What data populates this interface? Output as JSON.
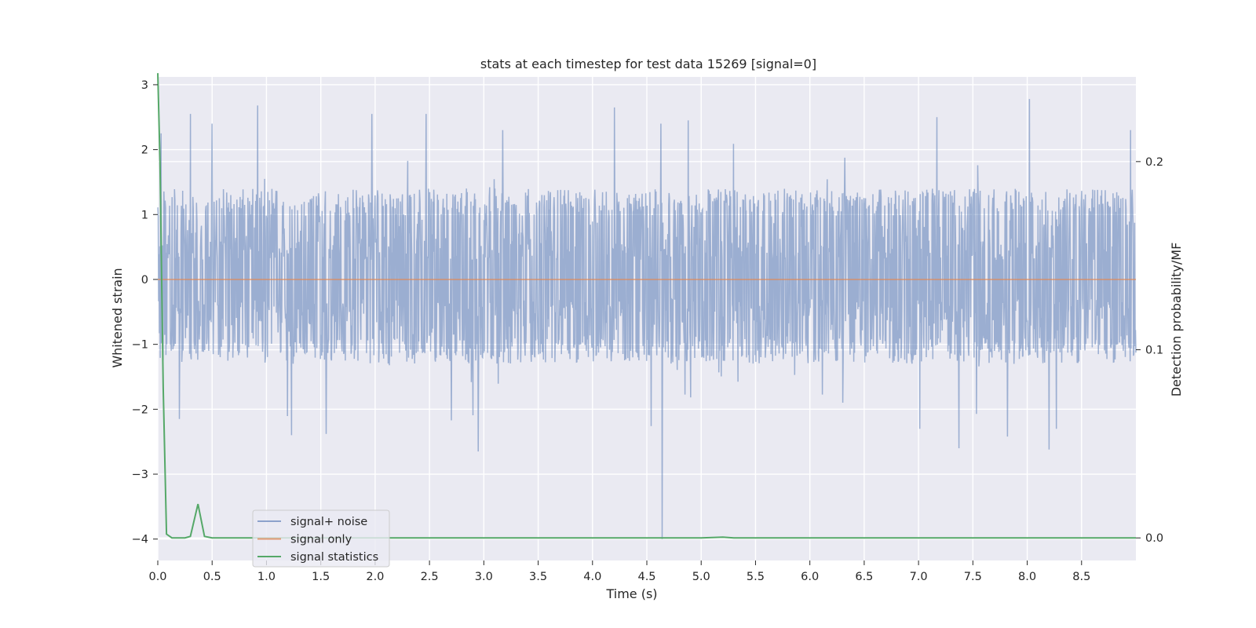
{
  "chart_data": {
    "type": "line",
    "title": "stats at each timestep for test data 15269 [signal=0]",
    "xlabel": "Time (s)",
    "ylabel": "Whitened strain",
    "y2label": "Detection probability/MF",
    "xlim": [
      0,
      9.0
    ],
    "ylim": [
      -4.33,
      3.12
    ],
    "y2lim": [
      -0.012,
      0.245
    ],
    "x_ticks": [
      0.0,
      0.5,
      1.0,
      1.5,
      2.0,
      2.5,
      3.0,
      3.5,
      4.0,
      4.5,
      5.0,
      5.5,
      6.0,
      6.5,
      7.0,
      7.5,
      8.0,
      8.5
    ],
    "x_tick_labels": [
      "0.0",
      "0.5",
      "1.0",
      "1.5",
      "2.0",
      "2.5",
      "3.0",
      "3.5",
      "4.0",
      "4.5",
      "5.0",
      "5.5",
      "6.0",
      "6.5",
      "7.0",
      "7.5",
      "8.0",
      "8.5"
    ],
    "y_ticks": [
      3,
      2,
      1,
      0,
      -1,
      -2,
      -3,
      -4
    ],
    "y_tick_labels": [
      "3",
      "2",
      "1",
      "0",
      "−1",
      "−2",
      "−3",
      "−4"
    ],
    "y2_ticks": [
      0.2,
      0.1,
      0.0
    ],
    "y2_tick_labels": [
      "0.2",
      "0.1",
      "0.0"
    ],
    "grid": true,
    "legend_position": "lower-left",
    "colors": {
      "background": "#eaeaf2",
      "grid": "#ffffff",
      "noise": "#4c72b0",
      "signal_only": "#dd8452",
      "statistics": "#55a868"
    },
    "series": [
      {
        "name": "signal+ noise",
        "axis": "left",
        "description_axis": "left",
        "typical_range": [
          -1.3,
          1.4
        ],
        "peaks": [
          {
            "x": 0.03,
            "y": 2.25
          },
          {
            "x": 0.3,
            "y": 2.55
          },
          {
            "x": 0.5,
            "y": 2.4
          },
          {
            "x": 0.92,
            "y": 2.68
          },
          {
            "x": 1.97,
            "y": 2.55
          },
          {
            "x": 2.47,
            "y": 2.55
          },
          {
            "x": 4.2,
            "y": 2.65
          },
          {
            "x": 4.63,
            "y": 2.4
          },
          {
            "x": 4.88,
            "y": 2.45
          },
          {
            "x": 7.17,
            "y": 2.5
          },
          {
            "x": 8.02,
            "y": 2.78
          },
          {
            "x": 8.95,
            "y": 2.3
          }
        ],
        "troughs": [
          {
            "x": 0.2,
            "y": -2.15
          },
          {
            "x": 1.23,
            "y": -2.4
          },
          {
            "x": 1.55,
            "y": -2.38
          },
          {
            "x": 2.95,
            "y": -2.65
          },
          {
            "x": 4.64,
            "y": -4.0
          },
          {
            "x": 7.37,
            "y": -2.6
          },
          {
            "x": 7.82,
            "y": -2.42
          },
          {
            "x": 8.2,
            "y": -2.62
          }
        ]
      },
      {
        "name": "signal only",
        "axis": "left",
        "x": [
          0.0,
          9.0
        ],
        "values": [
          0.0,
          0.0
        ]
      },
      {
        "name": "signal statistics",
        "axis": "right",
        "x": [
          0.0,
          0.02,
          0.05,
          0.08,
          0.13,
          0.18,
          0.25,
          0.3,
          0.37,
          0.43,
          0.5,
          0.6,
          1.0,
          2.0,
          3.0,
          4.0,
          5.0,
          5.2,
          5.3,
          6.0,
          7.0,
          8.0,
          9.0
        ],
        "values": [
          0.247,
          0.2,
          0.08,
          0.002,
          0.0,
          0.0,
          0.0,
          0.0008,
          0.018,
          0.0008,
          0.0,
          0.0,
          0.0,
          0.0,
          0.0,
          0.0,
          0.0,
          0.0004,
          0.0,
          0.0,
          0.0,
          0.0,
          0.0
        ]
      }
    ]
  }
}
